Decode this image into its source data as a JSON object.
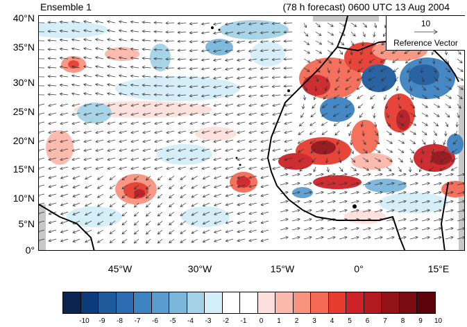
{
  "title_left": "Ensemble 1",
  "title_right": "(78 h forecast) 0600 UTC 13 Aug 2004",
  "lat_labels": [
    "40°N",
    "35°N",
    "30°N",
    "25°N",
    "20°N",
    "15°N",
    "10°N",
    "5°N",
    "0°"
  ],
  "lon_labels": [
    "45°W",
    "30°W",
    "15°W",
    "0°",
    "15°E"
  ],
  "reference_vector": {
    "value": "10",
    "label": "Reference Vector"
  },
  "colorbar": {
    "labels": [
      "-10",
      "-9",
      "-8",
      "-7",
      "-6",
      "-5",
      "-4",
      "-3",
      "-2",
      "-1",
      "0",
      "1",
      "2",
      "3",
      "4",
      "5",
      "6",
      "7",
      "8",
      "9",
      "10"
    ],
    "colors": [
      "#0b2550",
      "#0d3a78",
      "#1f5b9c",
      "#2b6cb0",
      "#3d82c1",
      "#5a9ccf",
      "#7bb6db",
      "#a3d2e6",
      "#d3eef7",
      "#ffffff",
      "#ffffff",
      "#fde0dc",
      "#fbb9ab",
      "#f8937f",
      "#f46a55",
      "#e63c2f",
      "#cc2228",
      "#b31a20",
      "#931218",
      "#7a0b12",
      "#5c0309"
    ]
  }
}
